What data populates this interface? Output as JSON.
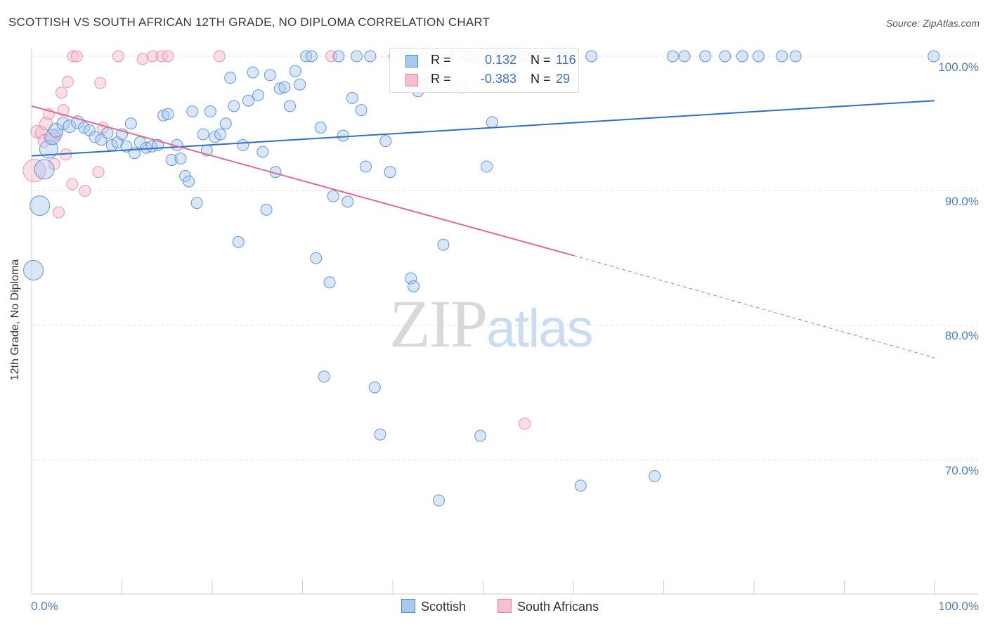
{
  "header": {
    "title": "SCOTTISH VS SOUTH AFRICAN 12TH GRADE, NO DIPLOMA CORRELATION CHART",
    "source": "Source: ZipAtlas.com"
  },
  "watermark": {
    "zip": "ZIP",
    "atlas": "atlas"
  },
  "legend": {
    "r_label": "R =",
    "n_label": "N =",
    "scottish": {
      "r": "0.132",
      "n": "116"
    },
    "south_africans": {
      "r": "-0.383",
      "n": "29"
    }
  },
  "colors": {
    "scottish_fill": "#a9c8ee",
    "scottish_stroke": "#4a86d4",
    "scottish_line": "#2f6fc7",
    "south_african_fill": "#f6bfd0",
    "south_african_stroke": "#e57fa0",
    "south_african_line": "#e06a95",
    "axis_text": "#4a7cc7"
  },
  "chart_data": {
    "type": "scatter",
    "title": "SCOTTISH VS SOUTH AFRICAN 12TH GRADE, NO DIPLOMA CORRELATION CHART",
    "ylabel": "12th Grade, No Diploma",
    "xlabel": "",
    "xlim": [
      0,
      100
    ],
    "ylim": [
      60,
      100
    ],
    "y_ticks": [
      "100.0%",
      "90.0%",
      "80.0%",
      "70.0%"
    ],
    "x_ticks": [
      "0.0%",
      "100.0%"
    ],
    "grid": "horizontal dashed",
    "legend": "top-center",
    "series": [
      {
        "name": "Scottish",
        "r": 0.132,
        "n": 116,
        "trend": {
          "x0": 0,
          "y0": 92.6,
          "x1": 100,
          "y1": 96.7
        },
        "points": [
          [
            0.2,
            84.1,
            14
          ],
          [
            0.9,
            88.9,
            14
          ],
          [
            1.4,
            91.6,
            14
          ],
          [
            1.9,
            93.1,
            13
          ],
          [
            2.3,
            94.0,
            11
          ],
          [
            2.7,
            94.5,
            10
          ],
          [
            3.5,
            95.0,
            9
          ],
          [
            4.2,
            94.8,
            9
          ],
          [
            5.1,
            95.1,
            9
          ],
          [
            5.8,
            94.7,
            8
          ],
          [
            6.4,
            94.5,
            8
          ],
          [
            7.0,
            94.0,
            8
          ],
          [
            7.7,
            93.8,
            8
          ],
          [
            8.4,
            94.3,
            8
          ],
          [
            8.9,
            93.4,
            8
          ],
          [
            9.5,
            93.6,
            8
          ],
          [
            10.0,
            94.2,
            8
          ],
          [
            10.5,
            93.3,
            8
          ],
          [
            11.0,
            95.0,
            8
          ],
          [
            11.4,
            92.8,
            8
          ],
          [
            12.0,
            93.6,
            8
          ],
          [
            12.7,
            93.2,
            8
          ],
          [
            13.3,
            93.3,
            8
          ],
          [
            14.0,
            93.4,
            8
          ],
          [
            14.6,
            95.6,
            8
          ],
          [
            15.1,
            95.7,
            8
          ],
          [
            15.5,
            92.3,
            8
          ],
          [
            16.1,
            93.4,
            8
          ],
          [
            16.5,
            92.4,
            8
          ],
          [
            17.0,
            91.1,
            8
          ],
          [
            17.4,
            90.7,
            8
          ],
          [
            17.8,
            95.9,
            8
          ],
          [
            18.3,
            89.1,
            8
          ],
          [
            19.0,
            94.2,
            8
          ],
          [
            19.4,
            93.0,
            8
          ],
          [
            19.8,
            95.9,
            8
          ],
          [
            20.3,
            94.0,
            8
          ],
          [
            20.9,
            94.2,
            8
          ],
          [
            21.5,
            95.0,
            8
          ],
          [
            22.0,
            98.4,
            8
          ],
          [
            22.4,
            96.3,
            8
          ],
          [
            22.9,
            86.2,
            8
          ],
          [
            23.4,
            93.4,
            8
          ],
          [
            24.0,
            96.7,
            8
          ],
          [
            24.5,
            98.8,
            8
          ],
          [
            25.1,
            97.1,
            8
          ],
          [
            25.6,
            92.9,
            8
          ],
          [
            26.0,
            88.6,
            8
          ],
          [
            26.4,
            98.6,
            8
          ],
          [
            27.0,
            91.4,
            8
          ],
          [
            27.5,
            97.6,
            8
          ],
          [
            28.0,
            97.7,
            8
          ],
          [
            28.6,
            96.3,
            8
          ],
          [
            29.2,
            98.9,
            8
          ],
          [
            29.7,
            97.9,
            8
          ],
          [
            30.4,
            100.0,
            8
          ],
          [
            31.0,
            100.0,
            8
          ],
          [
            31.5,
            85.0,
            8
          ],
          [
            32.0,
            94.7,
            8
          ],
          [
            32.4,
            76.2,
            8
          ],
          [
            33.0,
            83.2,
            8
          ],
          [
            33.4,
            89.6,
            8
          ],
          [
            34.0,
            100.0,
            8
          ],
          [
            34.5,
            94.1,
            8
          ],
          [
            35.0,
            89.2,
            8
          ],
          [
            35.5,
            96.9,
            8
          ],
          [
            36.0,
            100.0,
            8
          ],
          [
            36.5,
            96.0,
            8
          ],
          [
            37.0,
            91.8,
            8
          ],
          [
            37.5,
            100.0,
            8
          ],
          [
            38.0,
            75.4,
            8
          ],
          [
            38.6,
            71.9,
            8
          ],
          [
            39.2,
            93.7,
            8
          ],
          [
            39.7,
            91.4,
            8
          ],
          [
            40.2,
            100.0,
            8
          ],
          [
            41.5,
            100.0,
            8
          ],
          [
            42.0,
            83.5,
            8
          ],
          [
            42.3,
            82.9,
            8
          ],
          [
            42.8,
            97.4,
            8
          ],
          [
            43.4,
            100.0,
            8
          ],
          [
            44.0,
            98.0,
            8
          ],
          [
            44.7,
            100.0,
            8
          ],
          [
            45.1,
            67.0,
            8
          ],
          [
            45.6,
            86.0,
            8
          ],
          [
            46.2,
            100.0,
            8
          ],
          [
            47.0,
            100.0,
            8
          ],
          [
            47.6,
            97.7,
            8
          ],
          [
            48.4,
            100.0,
            8
          ],
          [
            49.0,
            100.0,
            8
          ],
          [
            49.7,
            71.8,
            8
          ],
          [
            50.4,
            91.8,
            8
          ],
          [
            51.0,
            95.1,
            8
          ],
          [
            51.8,
            100.0,
            8
          ],
          [
            52.5,
            100.0,
            8
          ],
          [
            53.1,
            100.0,
            8
          ],
          [
            53.8,
            100.0,
            8
          ],
          [
            54.6,
            100.0,
            8
          ],
          [
            55.3,
            100.0,
            8
          ],
          [
            56.0,
            100.0,
            8
          ],
          [
            57.0,
            100.0,
            8
          ],
          [
            58.1,
            100.0,
            8
          ],
          [
            59.5,
            100.0,
            8
          ],
          [
            60.8,
            68.1,
            8
          ],
          [
            62.0,
            100.0,
            8
          ],
          [
            69.0,
            68.8,
            8
          ],
          [
            71.0,
            100.0,
            8
          ],
          [
            72.3,
            100.0,
            8
          ],
          [
            74.6,
            100.0,
            8
          ],
          [
            76.8,
            100.0,
            8
          ],
          [
            78.7,
            100.0,
            8
          ],
          [
            80.5,
            100.0,
            8
          ],
          [
            83.1,
            100.0,
            8
          ],
          [
            84.6,
            100.0,
            8
          ],
          [
            99.9,
            100.0,
            8
          ]
        ]
      },
      {
        "name": "South Africans",
        "r": -0.383,
        "n": 29,
        "trend": {
          "x0": 0,
          "y0": 96.3,
          "x1": 60,
          "y1": 85.2,
          "dash_to_x": 100,
          "dash_to_y": 77.6
        },
        "points": [
          [
            0.3,
            91.5,
            16
          ],
          [
            0.6,
            94.4,
            9
          ],
          [
            1.1,
            94.3,
            9
          ],
          [
            1.4,
            93.7,
            9
          ],
          [
            1.6,
            95.0,
            9
          ],
          [
            1.9,
            95.7,
            8
          ],
          [
            2.2,
            93.9,
            8
          ],
          [
            2.5,
            92.0,
            8
          ],
          [
            2.8,
            94.2,
            8
          ],
          [
            3.0,
            88.4,
            8
          ],
          [
            3.3,
            97.3,
            8
          ],
          [
            3.5,
            96.0,
            8
          ],
          [
            3.8,
            92.7,
            8
          ],
          [
            4.0,
            98.1,
            8
          ],
          [
            4.5,
            90.5,
            8
          ],
          [
            4.6,
            100.0,
            8
          ],
          [
            5.0,
            100.0,
            8
          ],
          [
            5.9,
            90.0,
            8
          ],
          [
            7.4,
            91.4,
            8
          ],
          [
            7.6,
            98.0,
            8
          ],
          [
            7.9,
            94.7,
            8
          ],
          [
            9.6,
            100.0,
            8
          ],
          [
            12.3,
            99.8,
            8
          ],
          [
            13.4,
            100.0,
            8
          ],
          [
            14.4,
            100.0,
            8
          ],
          [
            15.1,
            100.0,
            8
          ],
          [
            20.8,
            100.0,
            8
          ],
          [
            33.2,
            100.0,
            8
          ],
          [
            54.6,
            72.7,
            8
          ]
        ]
      }
    ]
  },
  "bottom_legend": [
    {
      "label": "Scottish"
    },
    {
      "label": "South Africans"
    }
  ]
}
